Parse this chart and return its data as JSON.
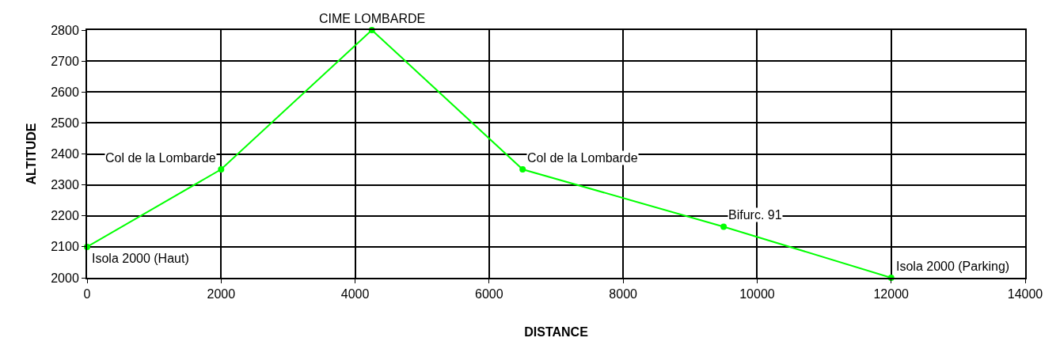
{
  "chart_data": {
    "type": "line",
    "xlabel": "DISTANCE",
    "ylabel": "ALTITUDE",
    "x": [
      0,
      2000,
      4250,
      6500,
      9500,
      12000
    ],
    "series": [
      {
        "color": "#00ff00",
        "values": [
          2100,
          2350,
          2800,
          2350,
          2165,
          2000
        ]
      }
    ],
    "xlim": [
      0,
      14000
    ],
    "xticks": [
      0,
      2000,
      4000,
      6000,
      8000,
      10000,
      12000,
      14000
    ],
    "ylim": [
      2000,
      2800
    ],
    "yticks": [
      2000,
      2100,
      2200,
      2300,
      2400,
      2500,
      2600,
      2700,
      2800
    ],
    "grid": true,
    "marker": "circle",
    "line_style": "solid",
    "legend": false,
    "annotations": [
      {
        "text": "Isola 2000 (Haut)",
        "x": 0,
        "y": 2100
      },
      {
        "text": "Col de la Lombarde",
        "x": 2000,
        "y": 2350
      },
      {
        "text": "CIME LOMBARDE",
        "x": 4250,
        "y": 2800
      },
      {
        "text": "Col de la Lombarde",
        "x": 6500,
        "y": 2350
      },
      {
        "text": "Bifurc. 91",
        "x": 9500,
        "y": 2165
      },
      {
        "text": "Isola 2000 (Parking)",
        "x": 12000,
        "y": 2000
      }
    ]
  }
}
